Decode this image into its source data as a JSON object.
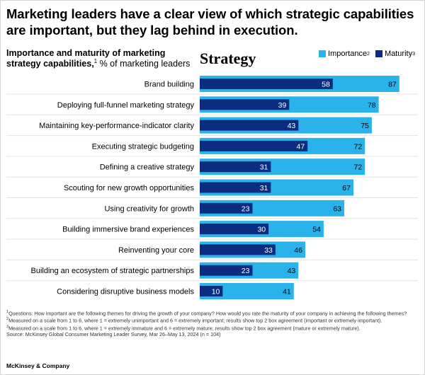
{
  "headline": "Marketing leaders have a clear view of which strategic capabilities are important, but they lag behind in execution.",
  "subtitle": {
    "bold": "Importance and maturity of marketing strategy capabilities,",
    "sup": "1",
    "rest": " % of marketing leaders"
  },
  "section_title": "Strategy",
  "legend": {
    "importance": {
      "label": "Importance",
      "sup": "2"
    },
    "maturity": {
      "label": "Maturity",
      "sup": "3"
    }
  },
  "colors": {
    "importance": "#2ab2eb",
    "maturity": "#0c2c80"
  },
  "chart_data": {
    "type": "bar",
    "orientation": "horizontal",
    "categories": [
      "Brand building",
      "Deploying full-funnel marketing strategy",
      "Maintaining key-performance-indicator clarity",
      "Executing strategic budgeting",
      "Defining a creative strategy",
      "Scouting for new growth opportunities",
      "Using creativity for growth",
      "Building immersive brand experiences",
      "Reinventing your core",
      "Building an ecosystem of strategic partnerships",
      "Considering disruptive business models"
    ],
    "series": [
      {
        "name": "Importance",
        "values": [
          87,
          78,
          75,
          72,
          72,
          67,
          63,
          54,
          46,
          43,
          41
        ]
      },
      {
        "name": "Maturity",
        "values": [
          58,
          39,
          43,
          47,
          31,
          31,
          23,
          30,
          33,
          23,
          10
        ]
      }
    ],
    "xlim": [
      0,
      88
    ],
    "grid": false
  },
  "footnotes": [
    {
      "sup": "1",
      "text": "Questions: How important are the following themes for driving the growth of your company? How would you rate the maturity of your company in achieving the following themes?"
    },
    {
      "sup": "2",
      "text": "Measured on a scale from 1 to 6, where 1 = extremely unimportant and 6 = extremely important; results show top 2 box agreement (important or extremely important)."
    },
    {
      "sup": "3",
      "text": "Measured on a scale from 1 to 6, where 1 = extremely immature and 6 = extremely mature; results show top 2 box agreement (mature or extremely mature)."
    },
    {
      "sup": "",
      "text": "Source: McKinsey Global Consumer Marketing Leader Survey, Mar 26–May 13, 2024 (n = 104)"
    }
  ],
  "brand": "McKinsey & Company"
}
